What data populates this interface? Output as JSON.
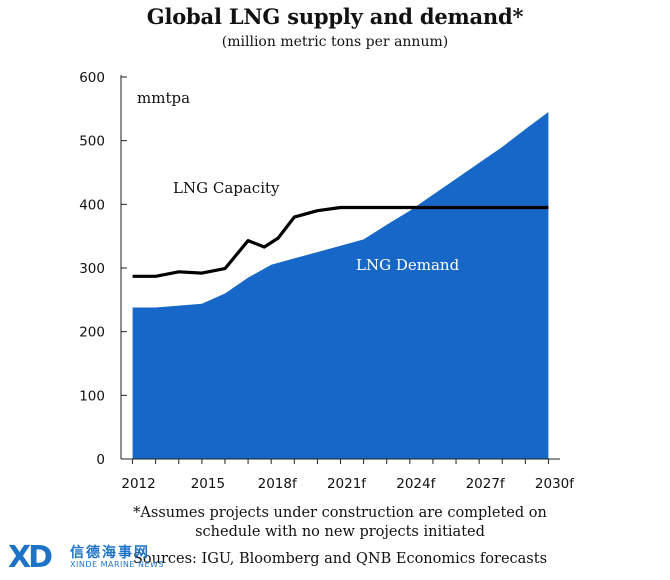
{
  "chart_data": {
    "type": "area",
    "title": "Global LNG supply and demand*",
    "subtitle": "(million metric tons per annum)",
    "unit_label": "mmtpa",
    "ylim": [
      0,
      600
    ],
    "yticks": [
      0,
      100,
      200,
      300,
      400,
      500,
      600
    ],
    "xlim": [
      2011.5,
      2030.5
    ],
    "xticks": [
      {
        "value": 2012,
        "label": "2012"
      },
      {
        "value": 2015,
        "label": "2015"
      },
      {
        "value": 2018,
        "label": "2018f"
      },
      {
        "value": 2021,
        "label": "2021f"
      },
      {
        "value": 2024,
        "label": "2024f"
      },
      {
        "value": 2027,
        "label": "2027f"
      },
      {
        "value": 2030,
        "label": "2030f"
      }
    ],
    "series": [
      {
        "name": "LNG Demand",
        "kind": "area",
        "color": "#1767c8",
        "x": [
          2012,
          2013,
          2014,
          2015,
          2016,
          2017,
          2018,
          2019,
          2020,
          2021,
          2022,
          2023,
          2024,
          2025,
          2026,
          2027,
          2028,
          2029,
          2030
        ],
        "y": [
          238,
          238,
          241,
          244,
          260,
          285,
          305,
          315,
          325,
          335,
          345,
          368,
          390,
          415,
          440,
          465,
          490,
          518,
          545
        ]
      },
      {
        "name": "LNG Capacity",
        "kind": "line",
        "color": "#000000",
        "x": [
          2012,
          2013,
          2014,
          2015,
          2016,
          2017,
          2017.7,
          2018.3,
          2019,
          2020,
          2021,
          2022,
          2023,
          2024,
          2025,
          2026,
          2027,
          2028,
          2029,
          2030
        ],
        "y": [
          287,
          287,
          294,
          292,
          299,
          343,
          333,
          347,
          380,
          390,
          395,
          395,
          395,
          395,
          395,
          395,
          395,
          395,
          395,
          395
        ]
      }
    ]
  },
  "footnote": {
    "line1": "*Assumes projects under construction are completed on",
    "line2": "schedule with no new projects initiated",
    "line3": "Sources: IGU, Bloomberg and QNB Economics forecasts"
  },
  "watermark": {
    "mark": "XD",
    "name_cn": "信德海事网",
    "name_en": "XINDE MARINE NEWS",
    "color": "#1e73c8"
  }
}
